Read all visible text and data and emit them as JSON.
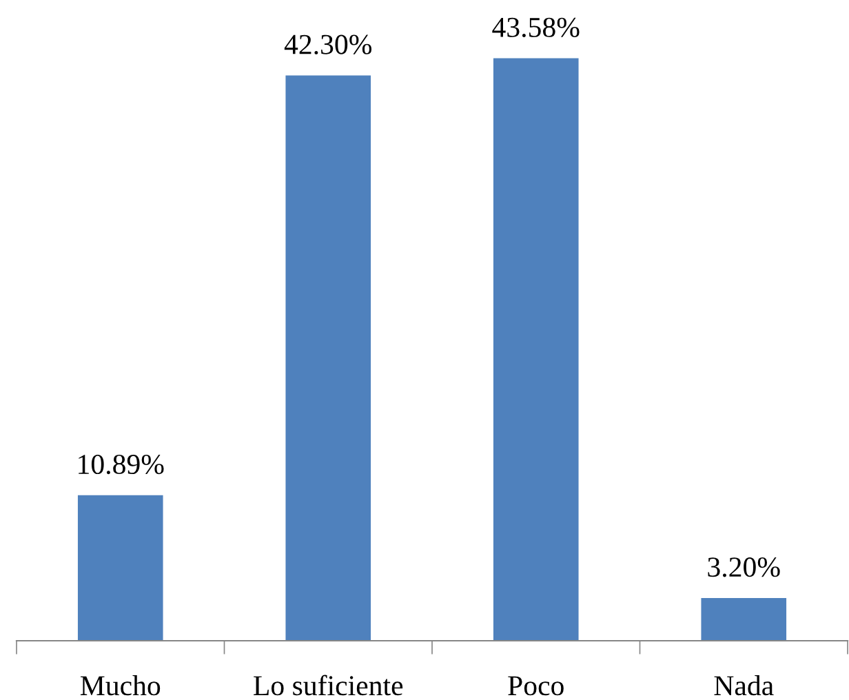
{
  "chart_data": {
    "type": "bar",
    "categories": [
      "Mucho",
      "Lo suficiente",
      "Poco",
      "Nada"
    ],
    "values": [
      10.89,
      42.3,
      43.58,
      3.2
    ],
    "value_labels": [
      "10.89%",
      "42.30%",
      "43.58%",
      "3.20%"
    ],
    "color": "#4f81bd",
    "grid": false,
    "legend": false
  }
}
